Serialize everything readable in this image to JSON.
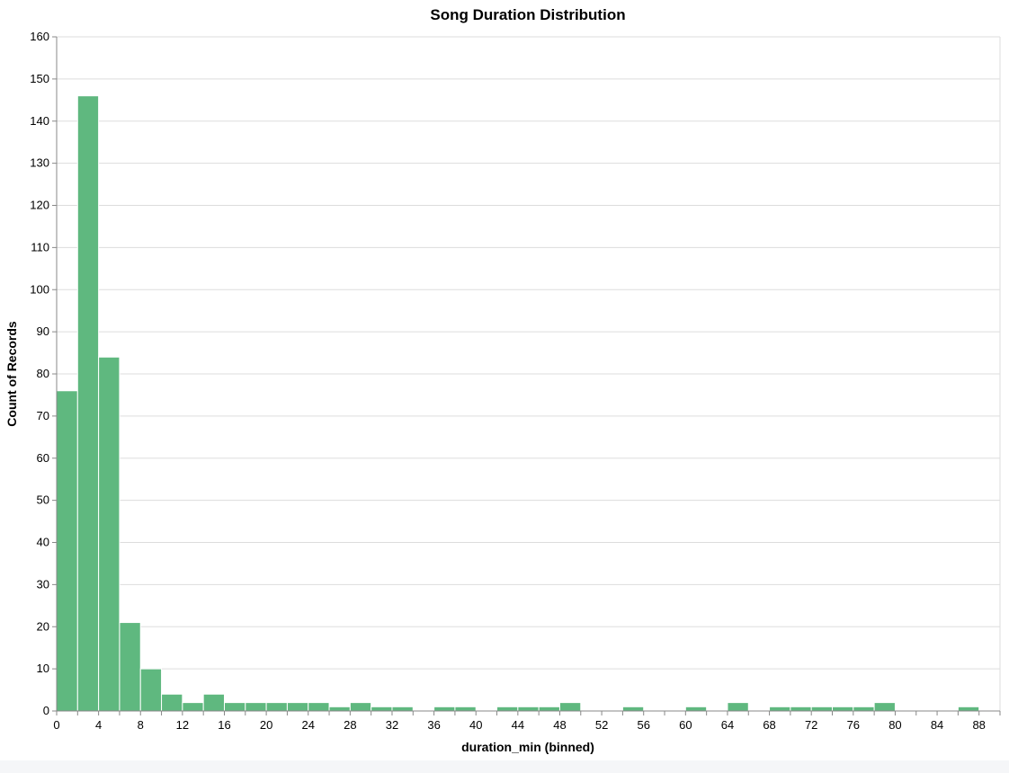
{
  "chart_data": {
    "type": "bar",
    "title": "Song Duration Distribution",
    "xlabel": "duration_min (binned)",
    "ylabel": "Count of Records",
    "bin_width": 2,
    "xlim": [
      0,
      90
    ],
    "ylim": [
      0,
      160
    ],
    "x_ticks": [
      0,
      4,
      8,
      12,
      16,
      20,
      24,
      28,
      32,
      36,
      40,
      44,
      48,
      52,
      56,
      60,
      64,
      68,
      72,
      76,
      80,
      84,
      88
    ],
    "y_ticks": [
      0,
      10,
      20,
      30,
      40,
      50,
      60,
      70,
      80,
      90,
      100,
      110,
      120,
      130,
      140,
      150,
      160
    ],
    "grid": true,
    "bar_color": "#5fb87f",
    "bins": [
      {
        "x0": 0,
        "x1": 2,
        "count": 76
      },
      {
        "x0": 2,
        "x1": 4,
        "count": 146
      },
      {
        "x0": 4,
        "x1": 6,
        "count": 84
      },
      {
        "x0": 6,
        "x1": 8,
        "count": 21
      },
      {
        "x0": 8,
        "x1": 10,
        "count": 10
      },
      {
        "x0": 10,
        "x1": 12,
        "count": 4
      },
      {
        "x0": 12,
        "x1": 14,
        "count": 2
      },
      {
        "x0": 14,
        "x1": 16,
        "count": 4
      },
      {
        "x0": 16,
        "x1": 18,
        "count": 2
      },
      {
        "x0": 18,
        "x1": 20,
        "count": 2
      },
      {
        "x0": 20,
        "x1": 22,
        "count": 2
      },
      {
        "x0": 22,
        "x1": 24,
        "count": 2
      },
      {
        "x0": 24,
        "x1": 26,
        "count": 2
      },
      {
        "x0": 26,
        "x1": 28,
        "count": 1
      },
      {
        "x0": 28,
        "x1": 30,
        "count": 2
      },
      {
        "x0": 30,
        "x1": 32,
        "count": 1
      },
      {
        "x0": 32,
        "x1": 34,
        "count": 1
      },
      {
        "x0": 36,
        "x1": 38,
        "count": 1
      },
      {
        "x0": 38,
        "x1": 40,
        "count": 1
      },
      {
        "x0": 42,
        "x1": 44,
        "count": 1
      },
      {
        "x0": 44,
        "x1": 46,
        "count": 1
      },
      {
        "x0": 46,
        "x1": 48,
        "count": 1
      },
      {
        "x0": 48,
        "x1": 50,
        "count": 2
      },
      {
        "x0": 54,
        "x1": 56,
        "count": 1
      },
      {
        "x0": 60,
        "x1": 62,
        "count": 1
      },
      {
        "x0": 64,
        "x1": 66,
        "count": 2
      },
      {
        "x0": 68,
        "x1": 70,
        "count": 1
      },
      {
        "x0": 70,
        "x1": 72,
        "count": 1
      },
      {
        "x0": 72,
        "x1": 74,
        "count": 1
      },
      {
        "x0": 74,
        "x1": 76,
        "count": 1
      },
      {
        "x0": 76,
        "x1": 78,
        "count": 1
      },
      {
        "x0": 78,
        "x1": 80,
        "count": 2
      },
      {
        "x0": 86,
        "x1": 88,
        "count": 1
      }
    ]
  }
}
